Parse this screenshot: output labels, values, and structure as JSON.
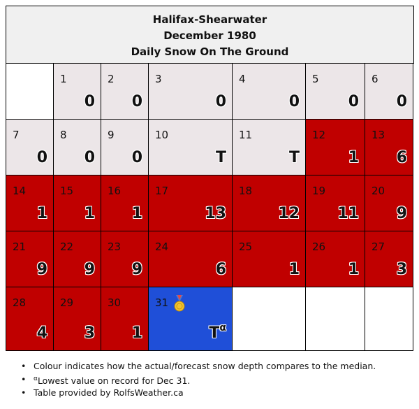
{
  "header": {
    "station": "Halifax-Shearwater",
    "month": "December 1980",
    "metric": "Daily Snow On The Ground"
  },
  "colors": {
    "above_median": "#c00000",
    "near_median": "#ece6e8",
    "record_low": "#1f4fd8"
  },
  "days": [
    {
      "day": "1",
      "value": "0"
    },
    {
      "day": "2",
      "value": "0"
    },
    {
      "day": "3",
      "value": "0"
    },
    {
      "day": "4",
      "value": "0"
    },
    {
      "day": "5",
      "value": "0"
    },
    {
      "day": "6",
      "value": "0"
    },
    {
      "day": "7",
      "value": "0"
    },
    {
      "day": "8",
      "value": "0"
    },
    {
      "day": "9",
      "value": "0"
    },
    {
      "day": "10",
      "value": "T"
    },
    {
      "day": "11",
      "value": "T"
    },
    {
      "day": "12",
      "value": "1"
    },
    {
      "day": "13",
      "value": "6"
    },
    {
      "day": "14",
      "value": "1"
    },
    {
      "day": "15",
      "value": "1"
    },
    {
      "day": "16",
      "value": "1"
    },
    {
      "day": "17",
      "value": "13"
    },
    {
      "day": "18",
      "value": "12"
    },
    {
      "day": "19",
      "value": "11"
    },
    {
      "day": "20",
      "value": "9"
    },
    {
      "day": "21",
      "value": "9"
    },
    {
      "day": "22",
      "value": "9"
    },
    {
      "day": "23",
      "value": "9"
    },
    {
      "day": "24",
      "value": "6"
    },
    {
      "day": "25",
      "value": "1"
    },
    {
      "day": "26",
      "value": "1"
    },
    {
      "day": "27",
      "value": "3"
    },
    {
      "day": "28",
      "value": "4"
    },
    {
      "day": "29",
      "value": "3"
    },
    {
      "day": "30",
      "value": "1"
    },
    {
      "day": "31",
      "value": "T",
      "marker": "α",
      "icon": "medal-icon"
    }
  ],
  "notes": {
    "colour_note": "Colour indicates how the actual/forecast snow depth compares to the median.",
    "record_marker": "α",
    "record_note": "Lowest value on record for Dec 31.",
    "credit": "Table provided by RolfsWeather.ca"
  }
}
